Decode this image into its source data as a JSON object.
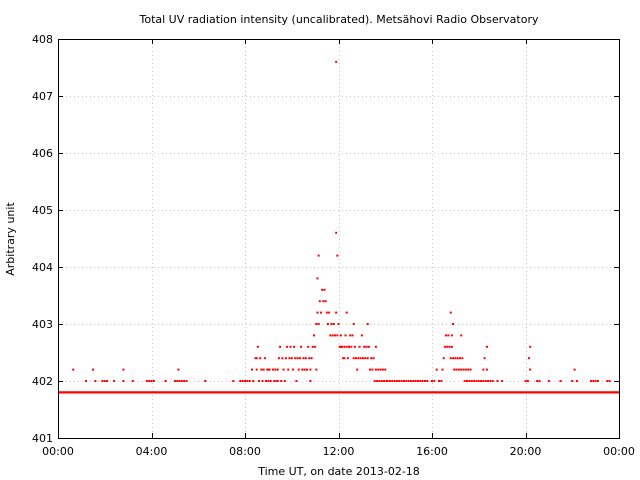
{
  "chart_data": {
    "type": "scatter",
    "title": "Total UV radiation intensity (uncalibrated). Metsähovi Radio Observatory",
    "xlabel": "Time UT, on date 2013-02-18",
    "ylabel": "Arbitrary unit",
    "xlim": [
      0,
      24
    ],
    "ylim": [
      401,
      408
    ],
    "x_ticks": [
      0,
      4,
      8,
      12,
      16,
      20,
      24
    ],
    "x_tick_labels": [
      "00:00",
      "04:00",
      "08:00",
      "12:00",
      "16:00",
      "20:00",
      "00:00"
    ],
    "y_ticks": [
      401,
      402,
      403,
      404,
      405,
      406,
      407,
      408
    ],
    "y_tick_labels": [
      "401",
      "402",
      "403",
      "404",
      "405",
      "406",
      "407",
      "408"
    ],
    "grid": true,
    "legend": "none",
    "baseline": {
      "y": 401.8,
      "x_range": [
        0,
        24
      ]
    },
    "series": [
      {
        "color": "#ff0000",
        "marker": "dot",
        "points": [
          [
            0.65,
            402.2
          ],
          [
            1.2,
            402.0
          ],
          [
            1.5,
            402.2
          ],
          [
            1.6,
            402.0
          ],
          [
            1.9,
            402.0
          ],
          [
            2.0,
            402.0
          ],
          [
            2.1,
            402.0
          ],
          [
            2.4,
            402.0
          ],
          [
            2.8,
            402.2
          ],
          [
            2.8,
            402.0
          ],
          [
            3.2,
            402.0
          ],
          [
            3.8,
            402.0
          ],
          [
            3.9,
            402.0
          ],
          [
            4.0,
            402.0
          ],
          [
            4.1,
            402.0
          ],
          [
            4.6,
            402.0
          ],
          [
            5.0,
            402.0
          ],
          [
            5.1,
            402.0
          ],
          [
            5.15,
            402.2
          ],
          [
            5.2,
            402.0
          ],
          [
            5.3,
            402.0
          ],
          [
            5.4,
            402.0
          ],
          [
            5.5,
            402.0
          ],
          [
            6.3,
            402.0
          ],
          [
            7.5,
            402.0
          ],
          [
            7.8,
            402.0
          ],
          [
            7.9,
            402.0
          ],
          [
            8.0,
            402.0
          ],
          [
            8.1,
            402.0
          ],
          [
            8.2,
            402.0
          ],
          [
            8.3,
            402.2
          ],
          [
            8.35,
            402.0
          ],
          [
            8.45,
            402.4
          ],
          [
            8.5,
            402.2
          ],
          [
            8.55,
            402.6
          ],
          [
            8.6,
            402.0
          ],
          [
            8.65,
            402.4
          ],
          [
            8.7,
            402.2
          ],
          [
            8.75,
            402.0
          ],
          [
            8.8,
            402.2
          ],
          [
            8.85,
            402.4
          ],
          [
            8.9,
            402.0
          ],
          [
            8.95,
            402.2
          ],
          [
            9.0,
            402.0
          ],
          [
            9.05,
            402.2
          ],
          [
            9.1,
            402.0
          ],
          [
            9.2,
            402.2
          ],
          [
            9.25,
            402.0
          ],
          [
            9.3,
            402.2
          ],
          [
            9.35,
            402.0
          ],
          [
            9.4,
            402.2
          ],
          [
            9.45,
            402.4
          ],
          [
            9.5,
            402.6
          ],
          [
            9.55,
            402.0
          ],
          [
            9.6,
            402.4
          ],
          [
            9.65,
            402.2
          ],
          [
            9.7,
            402.0
          ],
          [
            9.75,
            402.4
          ],
          [
            9.8,
            402.6
          ],
          [
            9.85,
            402.2
          ],
          [
            9.9,
            402.4
          ],
          [
            9.95,
            402.6
          ],
          [
            10.0,
            402.4
          ],
          [
            10.05,
            402.2
          ],
          [
            10.1,
            402.6
          ],
          [
            10.15,
            402.4
          ],
          [
            10.2,
            402.0
          ],
          [
            10.25,
            402.4
          ],
          [
            10.3,
            402.2
          ],
          [
            10.35,
            402.4
          ],
          [
            10.4,
            402.6
          ],
          [
            10.45,
            402.2
          ],
          [
            10.5,
            402.4
          ],
          [
            10.55,
            402.2
          ],
          [
            10.6,
            402.4
          ],
          [
            10.65,
            402.2
          ],
          [
            10.7,
            402.6
          ],
          [
            10.75,
            402.4
          ],
          [
            10.8,
            402.2
          ],
          [
            10.85,
            402.4
          ],
          [
            10.9,
            402.6
          ],
          [
            10.95,
            402.8
          ],
          [
            11.0,
            402.6
          ],
          [
            11.05,
            403.0
          ],
          [
            11.1,
            403.2
          ],
          [
            11.15,
            403.0
          ],
          [
            11.2,
            403.4
          ],
          [
            11.25,
            403.2
          ],
          [
            11.3,
            403.6
          ],
          [
            11.35,
            403.4
          ],
          [
            11.4,
            403.6
          ],
          [
            11.45,
            403.4
          ],
          [
            11.5,
            403.2
          ],
          [
            11.55,
            403.0
          ],
          [
            11.6,
            403.2
          ],
          [
            11.65,
            402.8
          ],
          [
            11.7,
            403.0
          ],
          [
            11.75,
            402.8
          ],
          [
            11.8,
            403.0
          ],
          [
            11.85,
            402.8
          ],
          [
            11.9,
            403.2
          ],
          [
            11.95,
            402.8
          ],
          [
            12.0,
            403.0
          ],
          [
            12.05,
            402.6
          ],
          [
            12.1,
            402.8
          ],
          [
            12.15,
            402.6
          ],
          [
            12.2,
            402.4
          ],
          [
            12.25,
            402.6
          ],
          [
            12.3,
            402.8
          ],
          [
            12.35,
            402.6
          ],
          [
            12.4,
            402.4
          ],
          [
            12.45,
            402.6
          ],
          [
            12.5,
            402.8
          ],
          [
            12.55,
            402.6
          ],
          [
            12.6,
            402.8
          ],
          [
            12.65,
            402.4
          ],
          [
            12.7,
            402.6
          ],
          [
            12.75,
            402.4
          ],
          [
            12.8,
            402.2
          ],
          [
            12.85,
            402.4
          ],
          [
            12.9,
            402.6
          ],
          [
            12.95,
            402.4
          ],
          [
            13.0,
            402.8
          ],
          [
            13.05,
            402.4
          ],
          [
            13.1,
            402.6
          ],
          [
            13.15,
            402.4
          ],
          [
            13.2,
            402.6
          ],
          [
            13.25,
            402.4
          ],
          [
            13.3,
            402.6
          ],
          [
            13.35,
            402.2
          ],
          [
            13.4,
            402.4
          ],
          [
            13.45,
            402.2
          ],
          [
            13.5,
            402.4
          ],
          [
            13.55,
            402.0
          ],
          [
            13.6,
            402.2
          ],
          [
            13.65,
            402.0
          ],
          [
            13.7,
            402.2
          ],
          [
            13.75,
            402.0
          ],
          [
            13.8,
            402.2
          ],
          [
            13.85,
            402.0
          ],
          [
            13.9,
            402.2
          ],
          [
            13.95,
            402.0
          ],
          [
            14.0,
            402.2
          ],
          [
            14.05,
            402.0
          ],
          [
            14.1,
            402.0
          ],
          [
            14.2,
            402.0
          ],
          [
            14.3,
            402.0
          ],
          [
            14.4,
            402.0
          ],
          [
            14.5,
            402.0
          ],
          [
            14.6,
            402.0
          ],
          [
            14.7,
            402.0
          ],
          [
            14.8,
            402.0
          ],
          [
            14.9,
            402.0
          ],
          [
            15.0,
            402.0
          ],
          [
            15.1,
            402.0
          ],
          [
            15.2,
            402.0
          ],
          [
            15.3,
            402.0
          ],
          [
            15.4,
            402.0
          ],
          [
            15.5,
            402.0
          ],
          [
            15.6,
            402.0
          ],
          [
            15.7,
            402.0
          ],
          [
            15.8,
            402.0
          ],
          [
            16.0,
            402.0
          ],
          [
            16.1,
            402.0
          ],
          [
            16.2,
            402.2
          ],
          [
            16.3,
            402.0
          ],
          [
            16.4,
            402.0
          ],
          [
            16.45,
            402.2
          ],
          [
            16.5,
            402.4
          ],
          [
            16.55,
            402.6
          ],
          [
            16.6,
            402.8
          ],
          [
            16.65,
            402.6
          ],
          [
            16.7,
            402.8
          ],
          [
            16.75,
            402.6
          ],
          [
            16.8,
            402.4
          ],
          [
            16.85,
            402.6
          ],
          [
            16.9,
            402.4
          ],
          [
            16.95,
            402.2
          ],
          [
            17.0,
            402.4
          ],
          [
            17.05,
            402.2
          ],
          [
            17.1,
            402.4
          ],
          [
            17.15,
            402.2
          ],
          [
            17.2,
            402.4
          ],
          [
            17.25,
            402.2
          ],
          [
            17.3,
            402.4
          ],
          [
            17.35,
            402.2
          ],
          [
            17.4,
            402.0
          ],
          [
            17.45,
            402.2
          ],
          [
            17.5,
            402.0
          ],
          [
            17.55,
            402.2
          ],
          [
            17.6,
            402.0
          ],
          [
            17.65,
            402.2
          ],
          [
            17.7,
            402.0
          ],
          [
            17.8,
            402.0
          ],
          [
            17.9,
            402.0
          ],
          [
            18.0,
            402.0
          ],
          [
            18.1,
            402.0
          ],
          [
            18.2,
            402.2
          ],
          [
            18.25,
            402.4
          ],
          [
            18.3,
            402.0
          ],
          [
            18.35,
            402.2
          ],
          [
            18.4,
            402.0
          ],
          [
            18.5,
            402.0
          ],
          [
            18.6,
            402.0
          ],
          [
            18.8,
            402.0
          ],
          [
            19.0,
            402.0
          ],
          [
            20.0,
            402.0
          ],
          [
            20.1,
            402.0
          ],
          [
            20.15,
            402.4
          ],
          [
            20.2,
            402.2
          ],
          [
            20.5,
            402.0
          ],
          [
            20.6,
            402.0
          ],
          [
            21.0,
            402.0
          ],
          [
            21.5,
            402.0
          ],
          [
            22.0,
            402.0
          ],
          [
            22.1,
            402.2
          ],
          [
            22.2,
            402.0
          ],
          [
            22.8,
            402.0
          ],
          [
            22.9,
            402.0
          ],
          [
            23.0,
            402.0
          ],
          [
            23.1,
            402.0
          ],
          [
            23.5,
            402.0
          ],
          [
            23.6,
            402.0
          ],
          [
            11.1,
            403.8
          ],
          [
            11.15,
            404.2
          ],
          [
            11.9,
            404.6
          ],
          [
            11.95,
            404.2
          ],
          [
            11.9,
            407.6
          ],
          [
            12.25,
            402.4
          ],
          [
            12.35,
            403.2
          ],
          [
            12.45,
            402.6
          ],
          [
            12.65,
            403.0
          ],
          [
            13.25,
            403.0
          ],
          [
            16.8,
            403.2
          ],
          [
            16.85,
            402.8
          ],
          [
            16.9,
            403.0
          ],
          [
            17.25,
            402.8
          ],
          [
            18.35,
            402.6
          ],
          [
            20.2,
            402.6
          ],
          [
            8.5,
            402.4
          ],
          [
            9.0,
            402.2
          ],
          [
            9.4,
            402.0
          ],
          [
            10.3,
            401.8
          ],
          [
            11.05,
            402.2
          ],
          [
            10.8,
            402.0
          ],
          [
            12.1,
            402.6
          ],
          [
            13.6,
            402.6
          ],
          [
            14.5,
            401.8
          ],
          [
            16.6,
            401.8
          ],
          [
            18.2,
            402.0
          ]
        ]
      }
    ]
  }
}
